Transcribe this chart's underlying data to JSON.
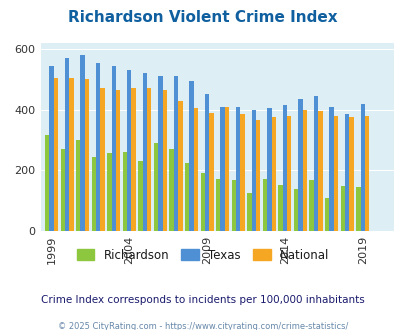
{
  "title": "Richardson Violent Crime Index",
  "title_color": "#1060a0",
  "subtitle": "Crime Index corresponds to incidents per 100,000 inhabitants",
  "subtitle_color": "#1a1a6e",
  "footer": "© 2025 CityRating.com - https://www.cityrating.com/crime-statistics/",
  "footer_color": "#6688aa",
  "years": [
    1999,
    2000,
    2001,
    2002,
    2003,
    2004,
    2005,
    2006,
    2007,
    2008,
    2009,
    2010,
    2011,
    2012,
    2013,
    2014,
    2015,
    2016,
    2017,
    2018,
    2019,
    2020
  ],
  "richardson": [
    315,
    270,
    300,
    245,
    258,
    260,
    230,
    290,
    270,
    225,
    190,
    172,
    168,
    125,
    172,
    150,
    140,
    168,
    110,
    148,
    145,
    0
  ],
  "texas": [
    545,
    570,
    580,
    555,
    545,
    530,
    520,
    510,
    510,
    495,
    450,
    410,
    410,
    400,
    405,
    415,
    435,
    445,
    410,
    385,
    420,
    0
  ],
  "national": [
    505,
    505,
    500,
    470,
    465,
    470,
    470,
    465,
    430,
    405,
    390,
    410,
    385,
    365,
    375,
    380,
    400,
    395,
    380,
    375,
    380,
    0
  ],
  "richardson_color": "#8dc63f",
  "texas_color": "#4f90d4",
  "national_color": "#f5a623",
  "bg_color": "#ddeef5",
  "ylim": [
    0,
    620
  ],
  "yticks": [
    0,
    200,
    400,
    600
  ],
  "xtick_years": [
    1999,
    2004,
    2009,
    2014,
    2019
  ],
  "bar_width": 0.28,
  "legend_labels": [
    "Richardson",
    "Texas",
    "National"
  ],
  "figure_bg": "#ffffff"
}
